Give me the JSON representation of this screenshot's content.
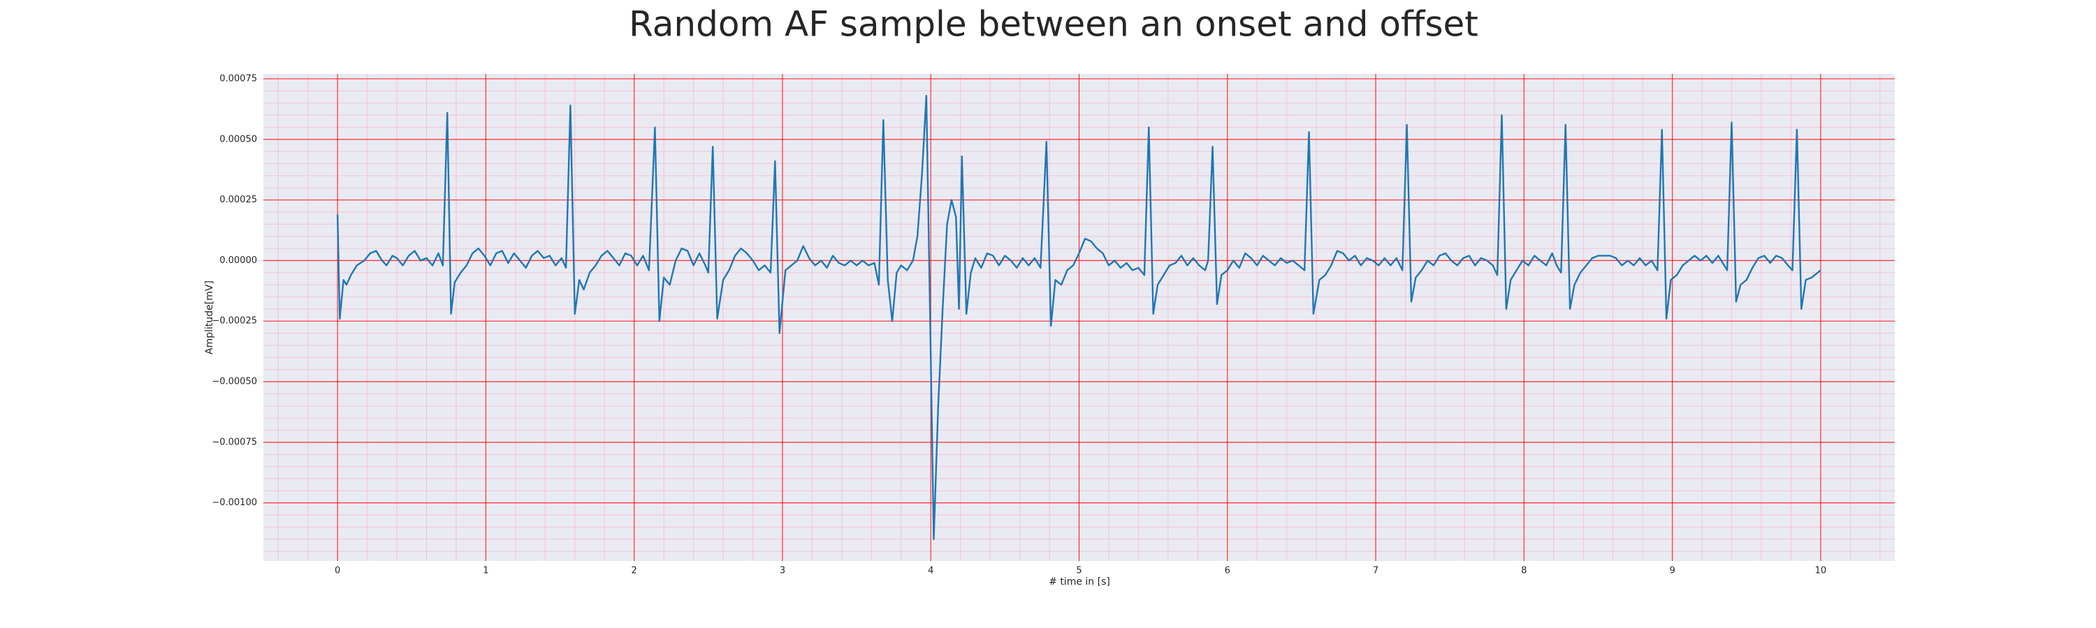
{
  "chart_data": {
    "type": "line",
    "title": "Random AF sample between an onset and offset",
    "xlabel": "# time in [s]",
    "ylabel": "Amplitude[mV]",
    "color": "#1f77b4",
    "background": "#eaeaf2",
    "grid": true,
    "minor_grid": true,
    "grid_color": "#ff0000",
    "minor_grid_color": "#f6b3c4",
    "xlim": [
      -0.5,
      10.5
    ],
    "ylim": [
      -0.00124,
      0.00077
    ],
    "xticks": [
      0,
      1,
      2,
      3,
      4,
      5,
      6,
      7,
      8,
      9,
      10
    ],
    "yticks": [
      {
        "value": -0.001,
        "label": "−0.00100"
      },
      {
        "value": -0.00075,
        "label": "−0.00075"
      },
      {
        "value": -0.0005,
        "label": "−0.00050"
      },
      {
        "value": -0.00025,
        "label": "−0.00025"
      },
      {
        "value": 0,
        "label": "0.00000"
      },
      {
        "value": 0.00025,
        "label": "0.00025"
      },
      {
        "value": 0.0005,
        "label": "0.00050"
      },
      {
        "value": 0.00075,
        "label": "0.00075"
      }
    ],
    "x": [
      0.0,
      0.015,
      0.04,
      0.06,
      0.09,
      0.13,
      0.18,
      0.22,
      0.26,
      0.3,
      0.33,
      0.37,
      0.4,
      0.44,
      0.48,
      0.52,
      0.56,
      0.6,
      0.64,
      0.68,
      0.71,
      0.74,
      0.765,
      0.79,
      0.83,
      0.87,
      0.91,
      0.95,
      0.99,
      1.03,
      1.07,
      1.11,
      1.15,
      1.19,
      1.23,
      1.27,
      1.31,
      1.35,
      1.39,
      1.43,
      1.47,
      1.51,
      1.54,
      1.57,
      1.6,
      1.63,
      1.66,
      1.7,
      1.74,
      1.78,
      1.82,
      1.86,
      1.9,
      1.94,
      1.98,
      2.02,
      2.06,
      2.1,
      2.14,
      2.17,
      2.2,
      2.24,
      2.28,
      2.32,
      2.36,
      2.4,
      2.44,
      2.48,
      2.5,
      2.53,
      2.56,
      2.6,
      2.64,
      2.68,
      2.72,
      2.76,
      2.8,
      2.84,
      2.88,
      2.92,
      2.95,
      2.98,
      3.02,
      3.06,
      3.1,
      3.14,
      3.18,
      3.22,
      3.26,
      3.3,
      3.34,
      3.38,
      3.42,
      3.46,
      3.5,
      3.54,
      3.58,
      3.62,
      3.65,
      3.68,
      3.71,
      3.74,
      3.77,
      3.8,
      3.84,
      3.88,
      3.91,
      3.94,
      3.97,
      4.0,
      4.02,
      4.05,
      4.08,
      4.11,
      4.14,
      4.17,
      4.19,
      4.21,
      4.24,
      4.27,
      4.3,
      4.34,
      4.38,
      4.42,
      4.46,
      4.5,
      4.54,
      4.58,
      4.62,
      4.66,
      4.7,
      4.74,
      4.78,
      4.81,
      4.84,
      4.88,
      4.92,
      4.96,
      5.0,
      5.04,
      5.08,
      5.12,
      5.16,
      5.2,
      5.24,
      5.28,
      5.32,
      5.36,
      5.4,
      5.44,
      5.47,
      5.5,
      5.53,
      5.57,
      5.61,
      5.65,
      5.69,
      5.73,
      5.77,
      5.81,
      5.85,
      5.87,
      5.9,
      5.93,
      5.96,
      6.0,
      6.04,
      6.08,
      6.12,
      6.16,
      6.2,
      6.24,
      6.28,
      6.32,
      6.36,
      6.4,
      6.44,
      6.48,
      6.52,
      6.55,
      6.58,
      6.62,
      6.66,
      6.7,
      6.74,
      6.78,
      6.82,
      6.86,
      6.9,
      6.94,
      6.98,
      7.02,
      7.06,
      7.1,
      7.14,
      7.18,
      7.21,
      7.24,
      7.27,
      7.31,
      7.35,
      7.39,
      7.43,
      7.47,
      7.51,
      7.55,
      7.59,
      7.63,
      7.67,
      7.71,
      7.75,
      7.79,
      7.82,
      7.85,
      7.88,
      7.91,
      7.95,
      7.99,
      8.03,
      8.07,
      8.11,
      8.15,
      8.19,
      8.22,
      8.25,
      8.28,
      8.31,
      8.34,
      8.38,
      8.42,
      8.46,
      8.5,
      8.54,
      8.58,
      8.62,
      8.66,
      8.7,
      8.74,
      8.78,
      8.82,
      8.86,
      8.9,
      8.93,
      8.96,
      8.99,
      9.03,
      9.07,
      9.11,
      9.15,
      9.19,
      9.23,
      9.27,
      9.31,
      9.35,
      9.37,
      9.4,
      9.43,
      9.46,
      9.5,
      9.54,
      9.58,
      9.62,
      9.66,
      9.7,
      9.74,
      9.78,
      9.81,
      9.84,
      9.87,
      9.9,
      9.94,
      9.98,
      10.0
    ],
    "values": [
      0.00019,
      -0.00024,
      -8e-05,
      -0.0001,
      -6e-05,
      -2e-05,
      0,
      3e-05,
      4e-05,
      0,
      -2e-05,
      2e-05,
      1e-05,
      -2e-05,
      2e-05,
      4e-05,
      0,
      1e-05,
      -2e-05,
      3e-05,
      -2e-05,
      0.00061,
      -0.00022,
      -9e-05,
      -5e-05,
      -2e-05,
      3e-05,
      5e-05,
      2e-05,
      -2e-05,
      3e-05,
      4e-05,
      -1e-05,
      3e-05,
      0,
      -3e-05,
      2e-05,
      4e-05,
      1e-05,
      2e-05,
      -2e-05,
      1e-05,
      -3e-05,
      0.00064,
      -0.00022,
      -8e-05,
      -0.00012,
      -5e-05,
      -2e-05,
      2e-05,
      4e-05,
      1e-05,
      -2e-05,
      3e-05,
      2e-05,
      -2e-05,
      2e-05,
      -4e-05,
      0.00055,
      -0.00025,
      -7e-05,
      -0.0001,
      0,
      5e-05,
      4e-05,
      -2e-05,
      3e-05,
      -2e-05,
      -5e-05,
      0.00047,
      -0.00024,
      -8e-05,
      -4e-05,
      2e-05,
      5e-05,
      3e-05,
      0,
      -4e-05,
      -2e-05,
      -5e-05,
      0.00041,
      -0.0003,
      -4e-05,
      -2e-05,
      0,
      6e-05,
      1e-05,
      -2e-05,
      0,
      -3e-05,
      2e-05,
      -1e-05,
      -2e-05,
      0,
      -2e-05,
      0,
      -2e-05,
      -1e-05,
      -0.0001,
      0.00058,
      -8e-05,
      -0.00025,
      -5e-05,
      -2e-05,
      -4e-05,
      0,
      0.0001,
      0.00035,
      0.00068,
      -0.0004,
      -0.00115,
      -0.0006,
      -0.0002,
      0.00015,
      0.00025,
      0.00018,
      -0.0002,
      0.00043,
      -0.00022,
      -5e-05,
      1e-05,
      -3e-05,
      3e-05,
      2e-05,
      -2e-05,
      2e-05,
      0,
      -3e-05,
      1e-05,
      -2e-05,
      1e-05,
      -3e-05,
      0.00049,
      -0.00027,
      -8e-05,
      -0.0001,
      -4e-05,
      -2e-05,
      3e-05,
      9e-05,
      8e-05,
      5e-05,
      3e-05,
      -2e-05,
      0,
      -3e-05,
      -1e-05,
      -4e-05,
      -3e-05,
      -6e-05,
      0.00055,
      -0.00022,
      -0.0001,
      -6e-05,
      -2e-05,
      -1e-05,
      2e-05,
      -2e-05,
      1e-05,
      -2e-05,
      -4e-05,
      0,
      0.00047,
      -0.00018,
      -6e-05,
      -4e-05,
      0,
      -3e-05,
      3e-05,
      1e-05,
      -2e-05,
      2e-05,
      0,
      -2e-05,
      1e-05,
      -1e-05,
      0,
      -2e-05,
      -4e-05,
      0.00053,
      -0.00022,
      -8e-05,
      -6e-05,
      -2e-05,
      4e-05,
      3e-05,
      0,
      2e-05,
      -2e-05,
      1e-05,
      0,
      -2e-05,
      1e-05,
      -2e-05,
      1e-05,
      -4e-05,
      0.00056,
      -0.00017,
      -7e-05,
      -4e-05,
      0,
      -2e-05,
      2e-05,
      3e-05,
      0,
      -2e-05,
      1e-05,
      2e-05,
      -2e-05,
      1e-05,
      0,
      -2e-05,
      -6e-05,
      0.0006,
      -0.0002,
      -8e-05,
      -4e-05,
      0,
      -2e-05,
      2e-05,
      0,
      -2e-05,
      3e-05,
      -2e-05,
      -5e-05,
      0.00056,
      -0.0002,
      -0.0001,
      -5e-05,
      -2e-05,
      1e-05,
      2e-05,
      2e-05,
      2e-05,
      1e-05,
      -2e-05,
      0,
      -2e-05,
      1e-05,
      -2e-05,
      0,
      -4e-05,
      0.00054,
      -0.00024,
      -8e-05,
      -6e-05,
      -2e-05,
      0,
      2e-05,
      0,
      2e-05,
      -1e-05,
      2e-05,
      -2e-05,
      -4e-05,
      0.00057,
      -0.00017,
      -0.0001,
      -8e-05,
      -3e-05,
      1e-05,
      2e-05,
      -1e-05,
      2e-05,
      1e-05,
      -2e-05,
      -4e-05,
      0.00054,
      -0.0002,
      -8e-05,
      -7e-05,
      -5e-05,
      -4e-05
    ]
  }
}
